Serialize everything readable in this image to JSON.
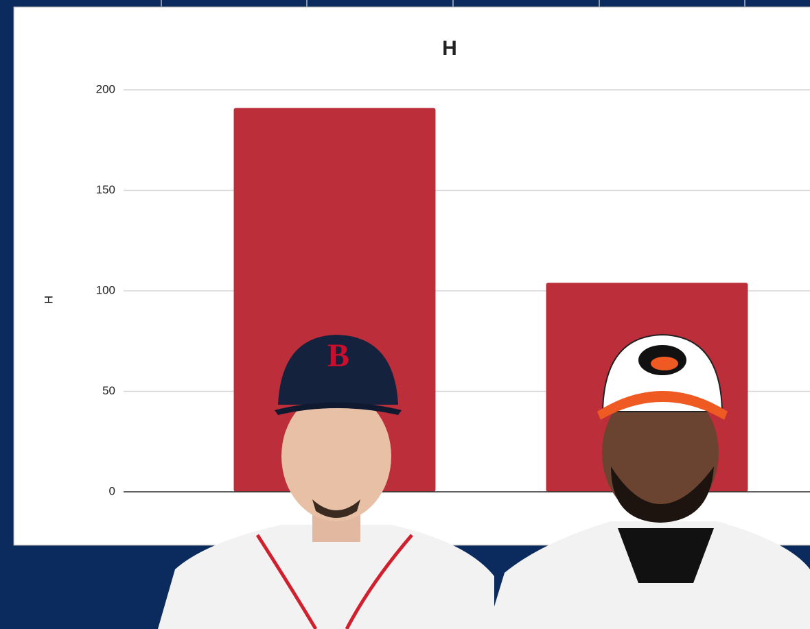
{
  "chart_data": {
    "type": "bar",
    "title": "H",
    "ylabel": "H",
    "categories": [
      null,
      null
    ],
    "values": [
      191,
      104
    ],
    "color": "#bc2e3a",
    "ylim": [
      0,
      200
    ],
    "yticks": [
      0,
      50,
      100,
      150,
      200
    ],
    "grid": true
  }
}
